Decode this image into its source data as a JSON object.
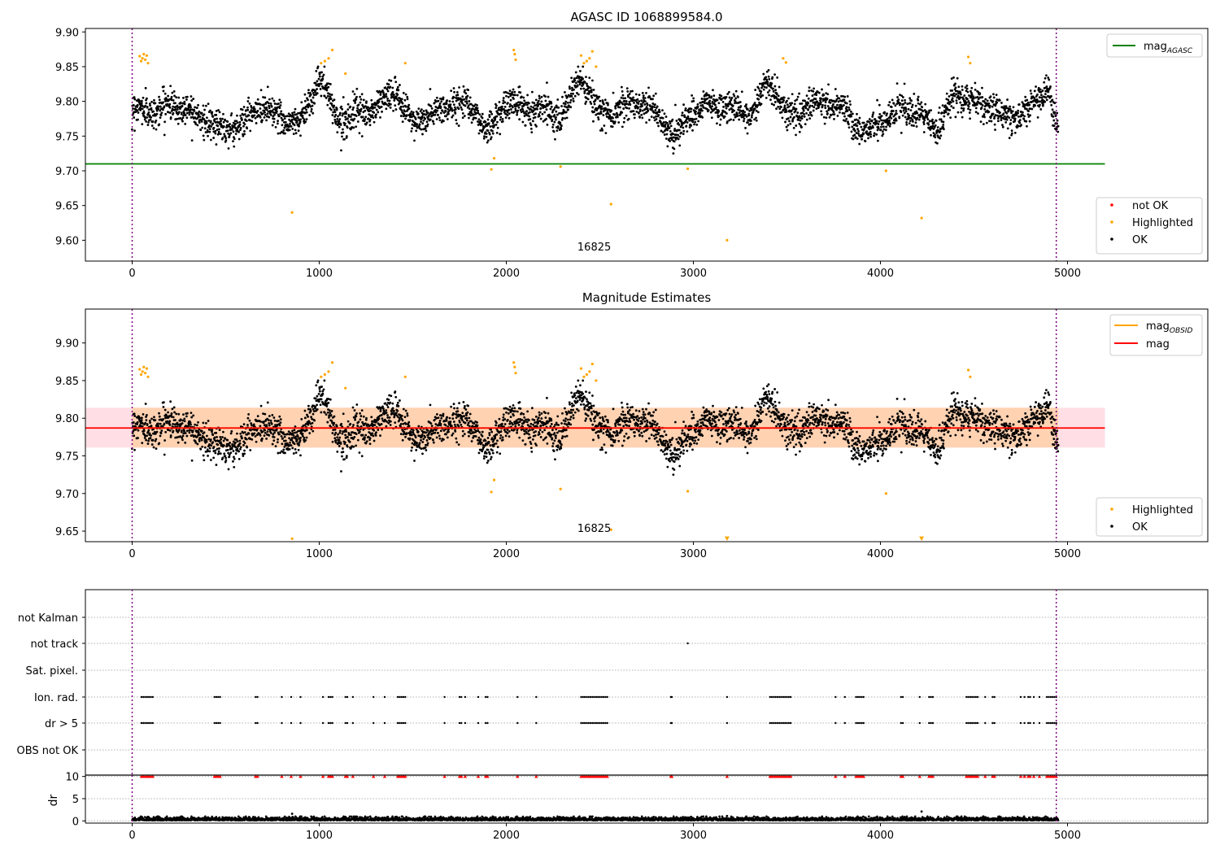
{
  "figure_title": "AGASC ID 1068899584.0",
  "colors": {
    "ok": "#000000",
    "highlighted": "#ffa500",
    "not_ok": "#ff0000",
    "agasc_line": "#008000",
    "obsid_line": "#ffa500",
    "mag_line": "#ff0000",
    "band": "#ffc0cb",
    "obs_bound": "#800080",
    "grid": "#b0b0b0"
  },
  "chart_data": [
    {
      "id": "panel1",
      "type": "scatter",
      "title": "AGASC ID 1068899584.0",
      "xlim": [
        -250,
        5750
      ],
      "ylim": [
        9.57,
        9.905
      ],
      "xticks": [
        0,
        1000,
        2000,
        3000,
        4000,
        5000
      ],
      "yticks": [
        9.6,
        9.65,
        9.7,
        9.75,
        9.8,
        9.85,
        9.9
      ],
      "ytick_labels": [
        "9.60",
        "9.65",
        "9.70",
        "9.75",
        "9.80",
        "9.85",
        "9.90"
      ],
      "obs_boundaries": [
        0,
        4940
      ],
      "obsid_label": {
        "text": "16825",
        "x": 2470,
        "y": 9.585
      },
      "hlines": [
        {
          "name": "mag_AGASC",
          "y": 9.71,
          "x_range": [
            -250,
            5200
          ],
          "color": "#008000"
        }
      ],
      "legend_lines": [
        {
          "label": "mag",
          "sub": "AGASC",
          "color": "#008000"
        }
      ],
      "legend_lines_loc": "upper right",
      "legend_points": [
        {
          "label": "not OK",
          "color": "#ff0000"
        },
        {
          "label": "Highlighted",
          "color": "#ffa500"
        },
        {
          "label": "OK",
          "color": "#000000"
        }
      ],
      "legend_points_loc": "lower right",
      "series": [
        {
          "name": "OK",
          "color": "#000000",
          "n_points": 3700,
          "x_range": [
            0,
            4950
          ],
          "typical_range": [
            9.725,
            9.85
          ],
          "trend_x": [
            0,
            100,
            200,
            300,
            400,
            500,
            600,
            700,
            800,
            900,
            1000,
            1100,
            1200,
            1300,
            1400,
            1500,
            1600,
            1700,
            1800,
            1900,
            2000,
            2100,
            2200,
            2300,
            2400,
            2500,
            2600,
            2700,
            2800,
            2900,
            3000,
            3100,
            3200,
            3300,
            3400,
            3500,
            3600,
            3700,
            3800,
            3900,
            4000,
            4100,
            4200,
            4300,
            4400,
            4500,
            4600,
            4700,
            4800,
            4900,
            4950
          ],
          "trend_y": [
            9.79,
            9.785,
            9.795,
            9.79,
            9.77,
            9.76,
            9.77,
            9.795,
            9.775,
            9.77,
            9.835,
            9.775,
            9.78,
            9.79,
            9.815,
            9.77,
            9.78,
            9.795,
            9.8,
            9.755,
            9.8,
            9.79,
            9.79,
            9.78,
            9.835,
            9.78,
            9.79,
            9.8,
            9.785,
            9.75,
            9.785,
            9.795,
            9.79,
            9.78,
            9.83,
            9.78,
            9.79,
            9.8,
            9.79,
            9.755,
            9.77,
            9.79,
            9.78,
            9.76,
            9.81,
            9.8,
            9.79,
            9.775,
            9.79,
            9.82,
            9.75
          ]
        },
        {
          "name": "Highlighted",
          "color": "#ffa500",
          "points": [
            [
              40,
              9.865
            ],
            [
              48,
              9.858
            ],
            [
              55,
              9.862
            ],
            [
              62,
              9.868
            ],
            [
              70,
              9.86
            ],
            [
              78,
              9.866
            ],
            [
              85,
              9.855
            ],
            [
              1010,
              9.855
            ],
            [
              1030,
              9.858
            ],
            [
              1050,
              9.862
            ],
            [
              1070,
              9.874
            ],
            [
              1140,
              9.84
            ],
            [
              1460,
              9.855
            ],
            [
              1920,
              9.702
            ],
            [
              1935,
              9.718
            ],
            [
              2040,
              9.874
            ],
            [
              2045,
              9.868
            ],
            [
              2050,
              9.86
            ],
            [
              2290,
              9.706
            ],
            [
              2400,
              9.866
            ],
            [
              2415,
              9.855
            ],
            [
              2430,
              9.858
            ],
            [
              2445,
              9.862
            ],
            [
              2460,
              9.872
            ],
            [
              2480,
              9.85
            ],
            [
              2560,
              9.652
            ],
            [
              2970,
              9.703
            ],
            [
              3180,
              9.6
            ],
            [
              3480,
              9.862
            ],
            [
              3495,
              9.856
            ],
            [
              4030,
              9.7
            ],
            [
              4220,
              9.632
            ],
            [
              4470,
              9.864
            ],
            [
              4480,
              9.855
            ],
            [
              855,
              9.64
            ]
          ]
        },
        {
          "name": "not OK",
          "color": "#ff0000",
          "points": []
        }
      ]
    },
    {
      "id": "panel2",
      "type": "scatter",
      "title": "Magnitude Estimates",
      "xlim": [
        -250,
        5750
      ],
      "ylim": [
        9.636,
        9.945
      ],
      "xticks": [
        0,
        1000,
        2000,
        3000,
        4000,
        5000
      ],
      "yticks": [
        9.65,
        9.7,
        9.75,
        9.8,
        9.85,
        9.9
      ],
      "ytick_labels": [
        "9.65",
        "9.70",
        "9.75",
        "9.80",
        "9.85",
        "9.90"
      ],
      "obs_boundaries": [
        0,
        4940
      ],
      "obsid_label": {
        "text": "16825",
        "x": 2470,
        "y": 9.649
      },
      "band": {
        "y_low": 9.761,
        "y_high": 9.814,
        "x_range": [
          -250,
          5200
        ],
        "color": "#ffc0cb"
      },
      "band_obsid": {
        "y_low": 9.761,
        "y_high": 9.814,
        "x_range": [
          0,
          4950
        ],
        "color": "#ffa500"
      },
      "hlines": [
        {
          "name": "mag_OBSID",
          "y": 9.787,
          "x_range": [
            0,
            4950
          ],
          "color": "#ffa500"
        },
        {
          "name": "mag",
          "y": 9.787,
          "x_range": [
            -250,
            5200
          ],
          "color": "#ff0000"
        }
      ],
      "legend_lines": [
        {
          "label": "mag",
          "sub": "OBSID",
          "color": "#ffa500"
        },
        {
          "label": "mag",
          "sub": "",
          "color": "#ff0000"
        }
      ],
      "legend_lines_loc": "upper right",
      "legend_points": [
        {
          "label": "Highlighted",
          "color": "#ffa500"
        },
        {
          "label": "OK",
          "color": "#000000"
        }
      ],
      "legend_points_loc": "lower right",
      "series": [
        {
          "name": "OK",
          "color": "#000000",
          "same_as": "panel1"
        },
        {
          "name": "Highlighted",
          "color": "#ffa500",
          "points": [
            [
              40,
              9.865
            ],
            [
              48,
              9.858
            ],
            [
              55,
              9.862
            ],
            [
              62,
              9.868
            ],
            [
              70,
              9.86
            ],
            [
              78,
              9.866
            ],
            [
              85,
              9.855
            ],
            [
              1010,
              9.855
            ],
            [
              1030,
              9.858
            ],
            [
              1050,
              9.862
            ],
            [
              1070,
              9.874
            ],
            [
              1140,
              9.84
            ],
            [
              1460,
              9.855
            ],
            [
              1920,
              9.702
            ],
            [
              1935,
              9.718
            ],
            [
              2040,
              9.874
            ],
            [
              2045,
              9.868
            ],
            [
              2050,
              9.86
            ],
            [
              2290,
              9.706
            ],
            [
              2400,
              9.866
            ],
            [
              2415,
              9.855
            ],
            [
              2430,
              9.858
            ],
            [
              2445,
              9.862
            ],
            [
              2460,
              9.872
            ],
            [
              2480,
              9.85
            ],
            [
              2560,
              9.652
            ],
            [
              2970,
              9.703
            ],
            [
              4030,
              9.7
            ],
            [
              4470,
              9.864
            ],
            [
              4480,
              9.855
            ],
            [
              855,
              9.64
            ]
          ]
        },
        {
          "name": "Highlighted (off-axis markers)",
          "color": "#ffa500",
          "marker": "down-triangle",
          "points": [
            [
              3180,
              9.636
            ],
            [
              4220,
              9.636
            ]
          ]
        }
      ]
    },
    {
      "id": "panel3",
      "type": "scatter",
      "xlim": [
        -250,
        5750
      ],
      "categories": [
        "not Kalman",
        "not track",
        "Sat. pixel.",
        "Ion. rad.",
        "dr > 5",
        "OBS not OK"
      ],
      "obs_boundaries": [
        0,
        4940
      ],
      "series": [
        {
          "name": "not track",
          "color": "#000000",
          "x": [
            2970
          ]
        },
        {
          "name": "Ion. rad.",
          "color": "#000000",
          "x": [
            50,
            60,
            70,
            80,
            90,
            100,
            110,
            440,
            450,
            460,
            470,
            660,
            670,
            800,
            850,
            900,
            1020,
            1050,
            1060,
            1070,
            1140,
            1150,
            1180,
            1290,
            1350,
            1420,
            1430,
            1440,
            1450,
            1460,
            1670,
            1750,
            1760,
            1780,
            1850,
            1890,
            1900,
            2060,
            2160,
            2400,
            2410,
            2420,
            2430,
            2440,
            2450,
            2460,
            2470,
            2480,
            2490,
            2500,
            2510,
            2520,
            2530,
            2540,
            2880,
            2885,
            3180,
            3410,
            3420,
            3430,
            3440,
            3450,
            3460,
            3470,
            3480,
            3490,
            3500,
            3510,
            3520,
            3760,
            3810,
            3870,
            3880,
            3890,
            3900,
            3910,
            4110,
            4120,
            4210,
            4260,
            4270,
            4280,
            4460,
            4470,
            4480,
            4490,
            4500,
            4510,
            4520,
            4560,
            4600,
            4610,
            4750,
            4770,
            4790,
            4800,
            4820,
            4850,
            4890,
            4900,
            4910,
            4920,
            4930,
            4940
          ]
        },
        {
          "name": "dr > 5",
          "color": "#000000",
          "x": [
            50,
            60,
            70,
            80,
            90,
            100,
            110,
            440,
            450,
            460,
            470,
            660,
            670,
            800,
            850,
            900,
            1020,
            1050,
            1060,
            1070,
            1140,
            1150,
            1180,
            1290,
            1350,
            1420,
            1430,
            1440,
            1450,
            1460,
            1670,
            1750,
            1760,
            1780,
            1850,
            1890,
            1900,
            2060,
            2160,
            2400,
            2410,
            2420,
            2430,
            2440,
            2450,
            2460,
            2470,
            2480,
            2490,
            2500,
            2510,
            2520,
            2530,
            2540,
            2880,
            2885,
            3180,
            3410,
            3420,
            3430,
            3440,
            3450,
            3460,
            3470,
            3480,
            3490,
            3500,
            3510,
            3520,
            3760,
            3810,
            3870,
            3880,
            3890,
            3900,
            3910,
            4110,
            4120,
            4210,
            4260,
            4270,
            4280,
            4460,
            4470,
            4480,
            4490,
            4500,
            4510,
            4520,
            4560,
            4600,
            4610,
            4750,
            4770,
            4790,
            4800,
            4820,
            4850,
            4890,
            4900,
            4910,
            4920,
            4930,
            4940
          ]
        }
      ]
    },
    {
      "id": "panel4",
      "type": "scatter",
      "ylabel": "dr",
      "xlim": [
        -250,
        5750
      ],
      "ylim": [
        -0.5,
        10.3
      ],
      "xticks": [
        0,
        1000,
        2000,
        3000,
        4000,
        5000
      ],
      "yticks": [
        0,
        5,
        10
      ],
      "ytick_labels": [
        "0",
        "5",
        "10"
      ],
      "obs_boundaries": [
        0,
        4940
      ],
      "series": [
        {
          "name": "dr",
          "color": "#000000",
          "n_points": 3700,
          "x_range": [
            0,
            4950
          ],
          "typical_range": [
            0.1,
            1.0
          ]
        },
        {
          "name": "dr (outliers)",
          "color": "#000000",
          "points": [
            [
              855,
              1.6
            ],
            [
              4220,
              2.1
            ],
            [
              3180,
              1.1
            ]
          ]
        },
        {
          "name": "dr > 10",
          "color": "#ff0000",
          "marker": "up-triangle",
          "value": 10,
          "same_x_as": "panel3.dr > 5"
        }
      ]
    }
  ]
}
